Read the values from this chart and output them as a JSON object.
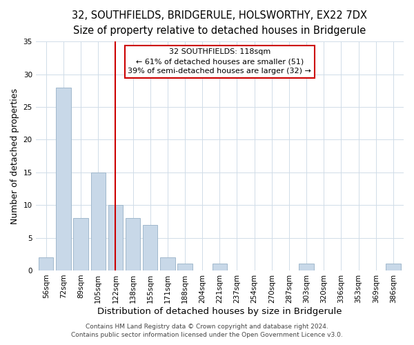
{
  "title": "32, SOUTHFIELDS, BRIDGERULE, HOLSWORTHY, EX22 7DX",
  "subtitle": "Size of property relative to detached houses in Bridgerule",
  "xlabel": "Distribution of detached houses by size in Bridgerule",
  "ylabel": "Number of detached properties",
  "bar_labels": [
    "56sqm",
    "72sqm",
    "89sqm",
    "105sqm",
    "122sqm",
    "138sqm",
    "155sqm",
    "171sqm",
    "188sqm",
    "204sqm",
    "221sqm",
    "237sqm",
    "254sqm",
    "270sqm",
    "287sqm",
    "303sqm",
    "320sqm",
    "336sqm",
    "353sqm",
    "369sqm",
    "386sqm"
  ],
  "bar_values": [
    2,
    28,
    8,
    15,
    10,
    8,
    7,
    2,
    1,
    0,
    1,
    0,
    0,
    0,
    0,
    1,
    0,
    0,
    0,
    0,
    1
  ],
  "bar_color": "#c8d8e8",
  "bar_edge_color": "#a0b8cc",
  "reference_line_x": 4,
  "annotation_title": "32 SOUTHFIELDS: 118sqm",
  "annotation_line1": "← 61% of detached houses are smaller (51)",
  "annotation_line2": "39% of semi-detached houses are larger (32) →",
  "annotation_box_color": "#ffffff",
  "annotation_box_edge_color": "#cc0000",
  "ref_line_color": "#cc0000",
  "ylim": [
    0,
    35
  ],
  "yticks": [
    0,
    5,
    10,
    15,
    20,
    25,
    30,
    35
  ],
  "footer1": "Contains HM Land Registry data © Crown copyright and database right 2024.",
  "footer2": "Contains public sector information licensed under the Open Government Licence v3.0.",
  "title_fontsize": 10.5,
  "subtitle_fontsize": 9.5,
  "xlabel_fontsize": 9.5,
  "ylabel_fontsize": 9,
  "tick_fontsize": 7.5,
  "annotation_fontsize": 8,
  "footer_fontsize": 6.5
}
